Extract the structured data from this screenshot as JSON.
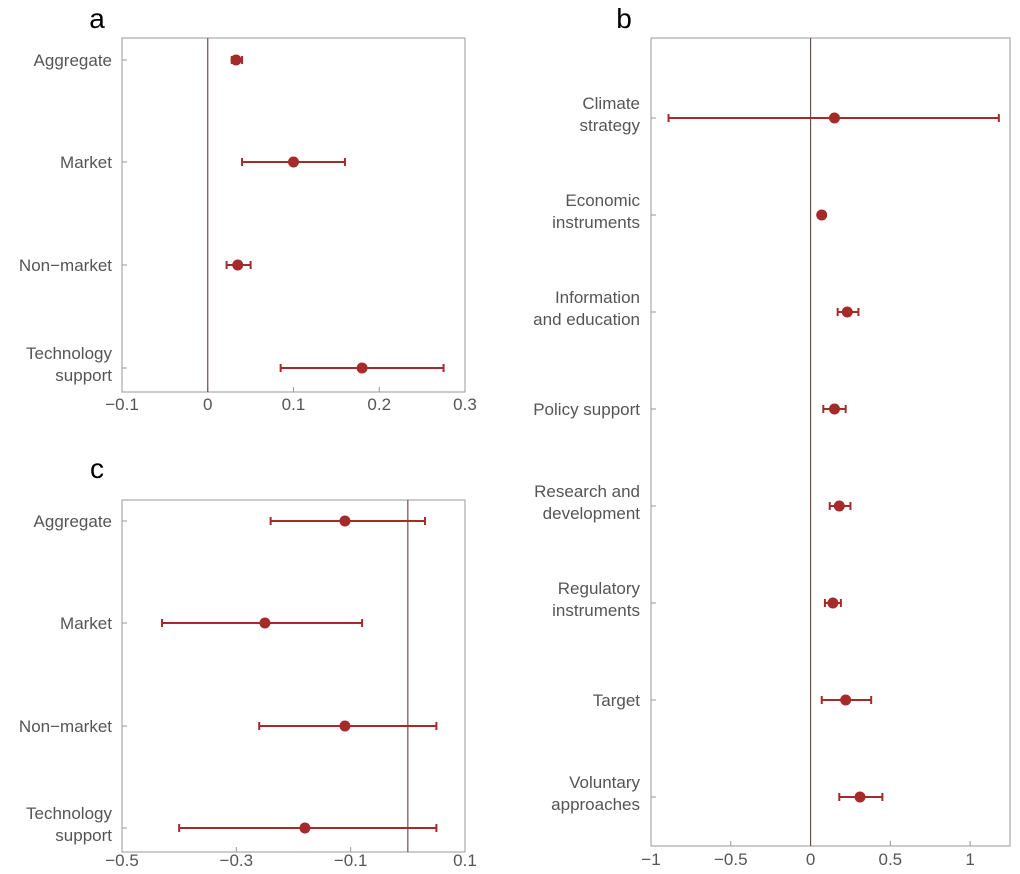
{
  "chart_data": [
    {
      "panel": "a",
      "type": "scatter",
      "categories": [
        "Aggregate",
        "Market",
        "Non−market",
        "Technology support"
      ],
      "points": [
        {
          "value": 0.033,
          "low": 0.028,
          "high": 0.04
        },
        {
          "value": 0.1,
          "low": 0.04,
          "high": 0.16
        },
        {
          "value": 0.035,
          "low": 0.022,
          "high": 0.05
        },
        {
          "value": 0.18,
          "low": 0.085,
          "high": 0.275
        }
      ],
      "xlim": [
        -0.1,
        0.3
      ],
      "xticks": [
        -0.1,
        0,
        0.1,
        0.2,
        0.3
      ],
      "xtick_labels": [
        "−0.1",
        "0",
        "0.1",
        "0.2",
        "0.3"
      ],
      "reference_line": 0
    },
    {
      "panel": "b",
      "type": "scatter",
      "categories": [
        "Climate strategy",
        "Economic instruments",
        "Information and education",
        "Policy support",
        "Research and development",
        "Regulatory instruments",
        "Target",
        "Voluntary approaches"
      ],
      "points": [
        {
          "value": 0.15,
          "low": -0.89,
          "high": 1.18
        },
        {
          "value": 0.07,
          "low": 0.05,
          "high": 0.09
        },
        {
          "value": 0.23,
          "low": 0.17,
          "high": 0.3
        },
        {
          "value": 0.15,
          "low": 0.08,
          "high": 0.22
        },
        {
          "value": 0.18,
          "low": 0.12,
          "high": 0.25
        },
        {
          "value": 0.14,
          "low": 0.09,
          "high": 0.19
        },
        {
          "value": 0.22,
          "low": 0.07,
          "high": 0.38
        },
        {
          "value": 0.31,
          "low": 0.18,
          "high": 0.45
        }
      ],
      "xlim": [
        -1,
        1.25
      ],
      "xticks": [
        -1,
        -0.5,
        0,
        0.5,
        1
      ],
      "xtick_labels": [
        "−1",
        "−0.5",
        "0",
        "0.5",
        "1"
      ],
      "reference_line": 0
    },
    {
      "panel": "c",
      "type": "scatter",
      "categories": [
        "Aggregate",
        "Market",
        "Non−market",
        "Technology support"
      ],
      "points": [
        {
          "value": -0.11,
          "low": -0.24,
          "high": 0.03
        },
        {
          "value": -0.25,
          "low": -0.43,
          "high": -0.08
        },
        {
          "value": -0.11,
          "low": -0.26,
          "high": 0.05
        },
        {
          "value": -0.18,
          "low": -0.4,
          "high": 0.05
        }
      ],
      "xlim": [
        -0.5,
        0.1
      ],
      "xticks": [
        -0.5,
        -0.3,
        -0.1,
        0.1
      ],
      "xtick_labels": [
        "−0.5",
        "−0.3",
        "−0.1",
        "0.1"
      ],
      "reference_line": 0
    }
  ]
}
